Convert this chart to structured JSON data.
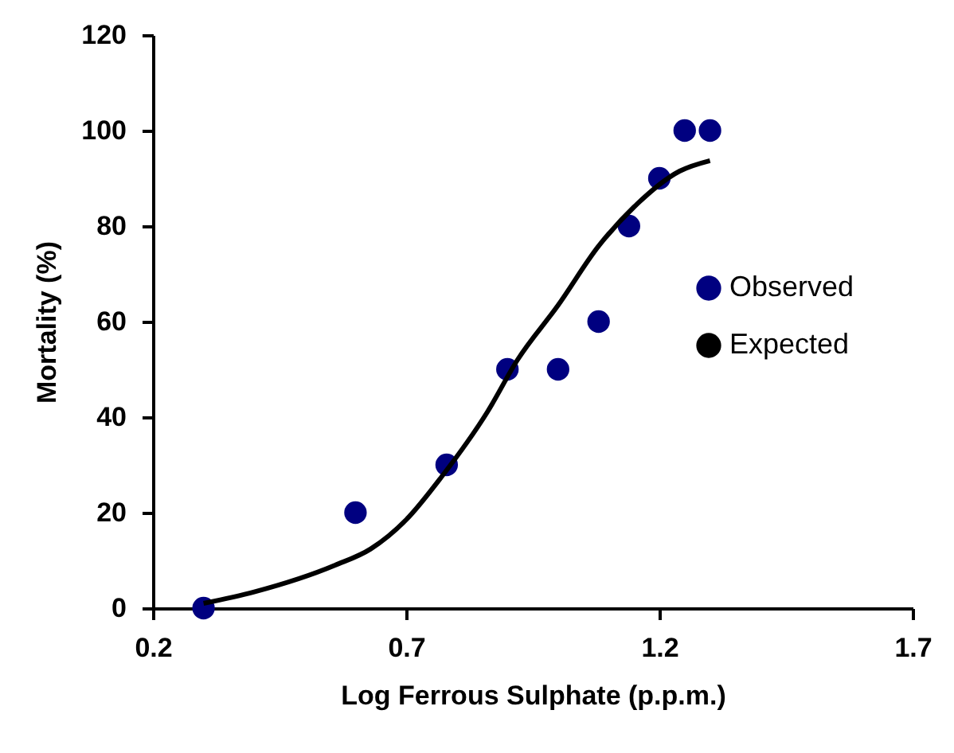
{
  "chart_data": {
    "type": "scatter",
    "xlabel": "Log Ferrous Sulphate (p.p.m.)",
    "ylabel": "Mortality (%)",
    "xlim": [
      0.2,
      1.7
    ],
    "xticks": [
      0.2,
      0.7,
      1.2,
      1.7
    ],
    "ylim": [
      0,
      120
    ],
    "yticks": [
      0,
      20,
      40,
      60,
      80,
      100,
      120
    ],
    "grid": false,
    "legend": "right",
    "series": [
      {
        "name": "Observed",
        "marker": "circle",
        "color": "#000080",
        "x": [
          0.3,
          0.6,
          0.78,
          0.9,
          1.0,
          1.08,
          1.14,
          1.2,
          1.25,
          1.3
        ],
        "values": [
          0,
          20,
          30,
          50,
          50,
          60,
          80,
          90,
          100,
          100
        ]
      },
      {
        "name": "Expected",
        "type": "line",
        "color": "#000000",
        "line_style": "solid",
        "x": [
          0.3,
          0.4,
          0.56,
          0.63,
          0.7,
          0.77,
          0.86,
          0.92,
          1.0,
          1.08,
          1.15,
          1.24,
          1.3
        ],
        "values": [
          1,
          3.4,
          9,
          12.4,
          18.5,
          27.5,
          41,
          52,
          63.4,
          75.8,
          84,
          91.5,
          93.7
        ]
      }
    ]
  }
}
